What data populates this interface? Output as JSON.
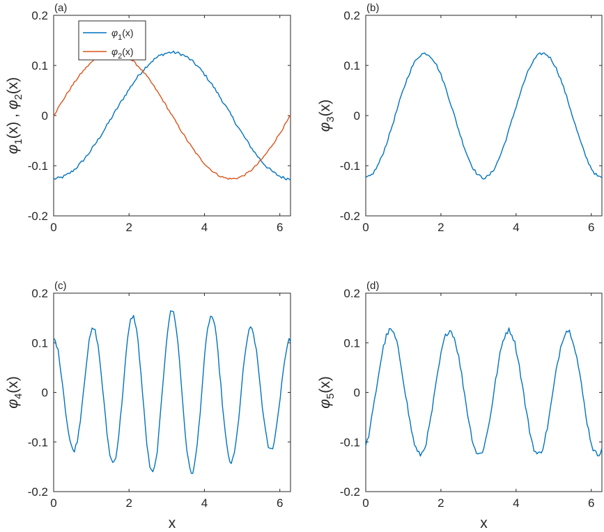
{
  "colors": {
    "series1": "#0072BD",
    "series2": "#D95319",
    "axis": "#262626",
    "background": "#FFFFFF"
  },
  "chart_data": [
    {
      "type": "line",
      "panel_label": "(a)",
      "ylabel": {
        "main": "φ",
        "sub1": "1",
        "mid": "(x) , φ",
        "sub2": "2",
        "end": "(x)"
      },
      "xlabel": "",
      "xlim": [
        0,
        6.2832
      ],
      "ylim": [
        -0.2,
        0.2
      ],
      "xticks": [
        "0",
        "2",
        "4",
        "6"
      ],
      "yticks": [
        "-0.2",
        "-0.1",
        "0",
        "0.1",
        "0.2"
      ],
      "grid": false,
      "legend": {
        "position": "top-left",
        "entries": [
          {
            "main": "φ",
            "sub": "1",
            "end": "(x)"
          },
          {
            "main": "φ",
            "sub": "2",
            "end": "(x)"
          }
        ]
      },
      "series": [
        {
          "name": "φ1(x)",
          "color": "#0072BD",
          "func": "-cos",
          "amp": 0.126,
          "freq": 1,
          "noise": 0.003
        },
        {
          "name": "φ2(x)",
          "color": "#D95319",
          "func": "sin",
          "amp": 0.126,
          "freq": 1,
          "noise": 0.002
        }
      ]
    },
    {
      "type": "line",
      "panel_label": "(b)",
      "ylabel": {
        "main": "φ",
        "sub1": "3",
        "end": "(x)"
      },
      "xlabel": "",
      "xlim": [
        0,
        6.2832
      ],
      "ylim": [
        -0.2,
        0.2
      ],
      "xticks": [
        "0",
        "2",
        "4",
        "6"
      ],
      "yticks": [
        "-0.2",
        "-0.1",
        "0",
        "0.1",
        "0.2"
      ],
      "grid": false,
      "series": [
        {
          "name": "φ3(x)",
          "color": "#0072BD",
          "func": "-cos",
          "amp": 0.124,
          "freq": 2,
          "noise": 0.003
        }
      ]
    },
    {
      "type": "line",
      "panel_label": "(c)",
      "ylabel": {
        "main": "φ",
        "sub1": "4",
        "end": "(x)"
      },
      "xlabel": "x",
      "xlim": [
        0,
        6.2832
      ],
      "ylim": [
        -0.2,
        0.2
      ],
      "xticks": [
        "0",
        "2",
        "4",
        "6"
      ],
      "yticks": [
        "-0.2",
        "-0.1",
        "0",
        "0.1",
        "0.2"
      ],
      "grid": false,
      "series": [
        {
          "name": "φ4(x)",
          "color": "#0072BD",
          "func": "wavepacket",
          "amp": 0.165,
          "freq": 6,
          "center": 3.1416,
          "width": 3.2,
          "noise": 0.005
        }
      ]
    },
    {
      "type": "line",
      "panel_label": "(d)",
      "ylabel": {
        "main": "φ",
        "sub1": "5",
        "end": "(x)"
      },
      "xlabel": "x",
      "xlim": [
        0,
        6.2832
      ],
      "ylim": [
        -0.2,
        0.2
      ],
      "xticks": [
        "0",
        "2",
        "4",
        "6"
      ],
      "yticks": [
        "-0.2",
        "-0.1",
        "0",
        "0.1",
        "0.2"
      ],
      "grid": false,
      "series": [
        {
          "name": "φ5(x)",
          "color": "#0072BD",
          "func": "-cos",
          "amp": 0.125,
          "freq": 4,
          "phase": 0.5,
          "noise": 0.006
        }
      ]
    }
  ]
}
